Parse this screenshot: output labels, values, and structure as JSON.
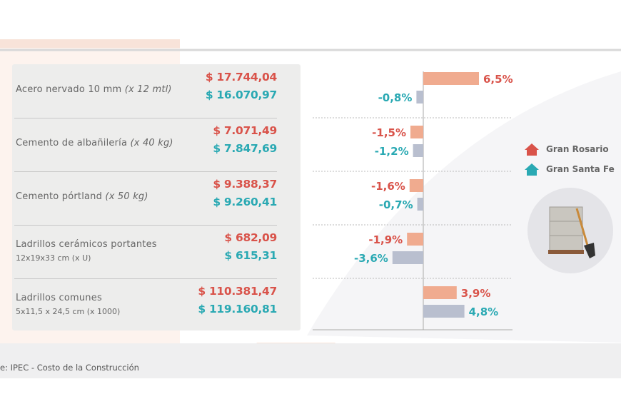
{
  "items": [
    {
      "name": "Acero nervado 10 mm",
      "unit": "(x 12 mtl)",
      "sub": "",
      "rosario_price": "$ 17.744,04",
      "santafe_price": "$ 16.070,97"
    },
    {
      "name": "Cemento de albañilería",
      "unit": "(x 40 kg)",
      "sub": "",
      "rosario_price": "$ 7.071,49",
      "santafe_price": "$ 7.847,69"
    },
    {
      "name": "Cemento pórtland",
      "unit": "(x 50 kg)",
      "sub": "",
      "rosario_price": "$ 9.388,37",
      "santafe_price": "$ 9.260,41"
    },
    {
      "name": "Ladrillos cerámicos portantes",
      "unit": "",
      "sub": "12x19x33 cm (x U)",
      "rosario_price": "$ 682,09",
      "santafe_price": "$ 615,31"
    },
    {
      "name": "Ladrillos comunes",
      "unit": "",
      "sub": "5x11,5 x 24,5 cm (x 1000)",
      "rosario_price": "$ 110.381,47",
      "santafe_price": "$ 119.160,81"
    }
  ],
  "legend": {
    "rosario": "Gran Rosario",
    "santafe": "Gran Santa Fe"
  },
  "footer": "e: IPEC - Costo de la Construcción",
  "colors": {
    "rosario_text": "#d9534a",
    "santafe_text": "#2aa9b3",
    "rosario_bar": "#f0ab8f",
    "santafe_bar": "#b9bfcf"
  },
  "chart_data": {
    "type": "bar",
    "orientation": "horizontal",
    "categories": [
      "Acero nervado 10 mm",
      "Cemento de albañilería",
      "Cemento pórtland",
      "Ladrillos cerámicos portantes",
      "Ladrillos comunes"
    ],
    "series": [
      {
        "name": "Gran Rosario",
        "values": [
          6.5,
          -1.5,
          -1.6,
          -1.9,
          3.9
        ],
        "labels": [
          "6,5%",
          "-1,5%",
          "-1,6%",
          "-1,9%",
          "3,9%"
        ]
      },
      {
        "name": "Gran Santa Fe",
        "values": [
          -0.8,
          -1.2,
          -0.7,
          -3.6,
          4.8
        ],
        "labels": [
          "-0,8%",
          "-1,2%",
          "-0,7%",
          "-3,6%",
          "4,8%"
        ]
      }
    ],
    "unit": "%"
  }
}
